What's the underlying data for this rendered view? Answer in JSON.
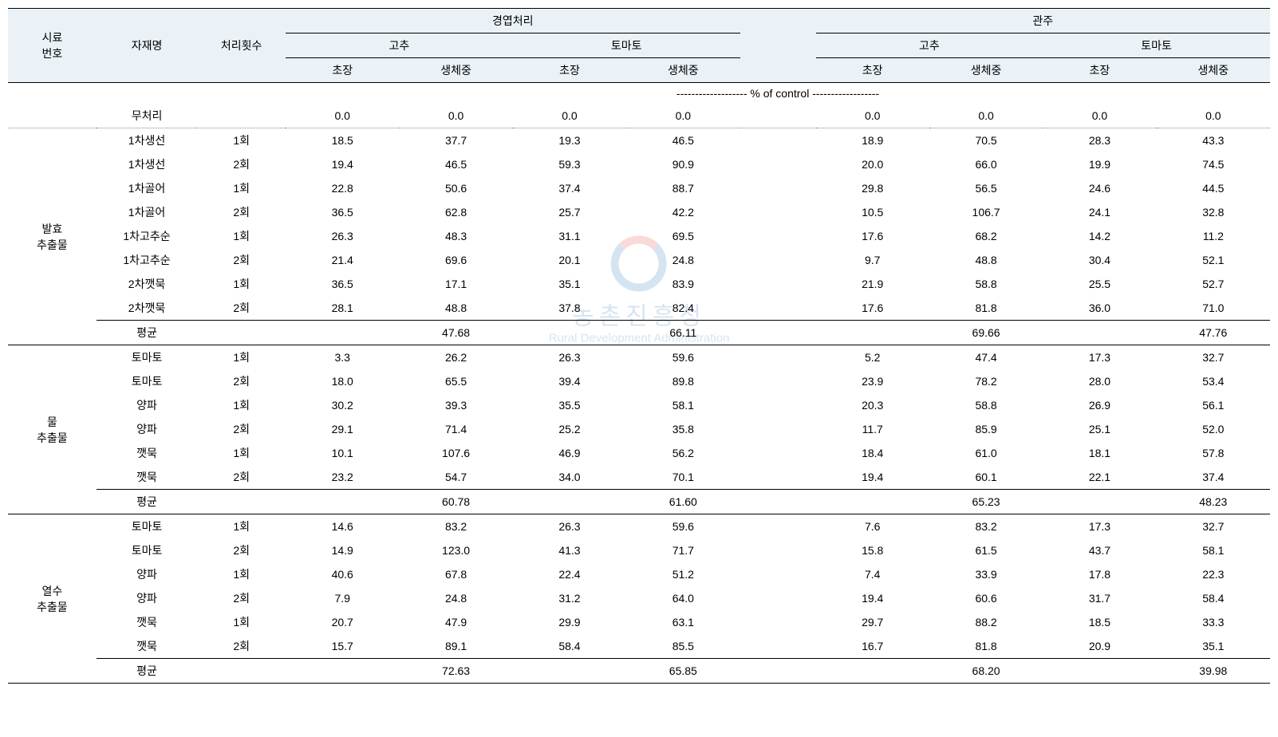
{
  "header": {
    "col_sample_no": "시료\n번호",
    "col_material": "자재명",
    "col_treatment_count": "처리횟수",
    "group_foliar": "경엽처리",
    "group_drench": "관주",
    "sub_pepper": "고추",
    "sub_tomato": "토마토",
    "leaf_height": "초장",
    "leaf_weight": "생체중",
    "pct_of_control": "------------------- % of control ------------------"
  },
  "labels": {
    "untreated": "무처리",
    "average": "평균",
    "group1": "발효\n추출물",
    "group2": "물\n추출물",
    "group3": "열수\n추출물"
  },
  "watermark": {
    "main": "농촌진흥청",
    "sub": "Rural Development Administration"
  },
  "untreated_row": [
    "0.0",
    "0.0",
    "0.0",
    "0.0",
    "0.0",
    "0.0",
    "0.0",
    "0.0"
  ],
  "group1": {
    "rows": [
      {
        "m": "1차생선",
        "t": "1회",
        "v": [
          "18.5",
          "37.7",
          "19.3",
          "46.5",
          "18.9",
          "70.5",
          "28.3",
          "43.3"
        ]
      },
      {
        "m": "1차생선",
        "t": "2회",
        "v": [
          "19.4",
          "46.5",
          "59.3",
          "90.9",
          "20.0",
          "66.0",
          "19.9",
          "74.5"
        ]
      },
      {
        "m": "1차골어",
        "t": "1회",
        "v": [
          "22.8",
          "50.6",
          "37.4",
          "88.7",
          "29.8",
          "56.5",
          "24.6",
          "44.5"
        ]
      },
      {
        "m": "1차골어",
        "t": "2회",
        "v": [
          "36.5",
          "62.8",
          "25.7",
          "42.2",
          "10.5",
          "106.7",
          "24.1",
          "32.8"
        ]
      },
      {
        "m": "1차고추순",
        "t": "1회",
        "v": [
          "26.3",
          "48.3",
          "31.1",
          "69.5",
          "17.6",
          "68.2",
          "14.2",
          "11.2"
        ]
      },
      {
        "m": "1차고추순",
        "t": "2회",
        "v": [
          "21.4",
          "69.6",
          "20.1",
          "24.8",
          "9.7",
          "48.8",
          "30.4",
          "52.1"
        ]
      },
      {
        "m": "2차깻묵",
        "t": "1회",
        "v": [
          "36.5",
          "17.1",
          "35.1",
          "83.9",
          "21.9",
          "58.8",
          "25.5",
          "52.7"
        ]
      },
      {
        "m": "2차깻묵",
        "t": "2회",
        "v": [
          "28.1",
          "48.8",
          "37.8",
          "82.4",
          "17.6",
          "81.8",
          "36.0",
          "71.0"
        ]
      }
    ],
    "avg": [
      "",
      "47.68",
      "",
      "66.11",
      "",
      "69.66",
      "",
      "47.76"
    ]
  },
  "group2": {
    "rows": [
      {
        "m": "토마토",
        "t": "1회",
        "v": [
          "3.3",
          "26.2",
          "26.3",
          "59.6",
          "5.2",
          "47.4",
          "17.3",
          "32.7"
        ]
      },
      {
        "m": "토마토",
        "t": "2회",
        "v": [
          "18.0",
          "65.5",
          "39.4",
          "89.8",
          "23.9",
          "78.2",
          "28.0",
          "53.4"
        ]
      },
      {
        "m": "양파",
        "t": "1회",
        "v": [
          "30.2",
          "39.3",
          "35.5",
          "58.1",
          "20.3",
          "58.8",
          "26.9",
          "56.1"
        ]
      },
      {
        "m": "양파",
        "t": "2회",
        "v": [
          "29.1",
          "71.4",
          "25.2",
          "35.8",
          "11.7",
          "85.9",
          "25.1",
          "52.0"
        ]
      },
      {
        "m": "깻묵",
        "t": "1회",
        "v": [
          "10.1",
          "107.6",
          "46.9",
          "56.2",
          "18.4",
          "61.0",
          "18.1",
          "57.8"
        ]
      },
      {
        "m": "깻묵",
        "t": "2회",
        "v": [
          "23.2",
          "54.7",
          "34.0",
          "70.1",
          "19.4",
          "60.1",
          "22.1",
          "37.4"
        ]
      }
    ],
    "avg": [
      "",
      "60.78",
      "",
      "61.60",
      "",
      "65.23",
      "",
      "48.23"
    ]
  },
  "group3": {
    "rows": [
      {
        "m": "토마토",
        "t": "1회",
        "v": [
          "14.6",
          "83.2",
          "26.3",
          "59.6",
          "7.6",
          "83.2",
          "17.3",
          "32.7"
        ]
      },
      {
        "m": "토마토",
        "t": "2회",
        "v": [
          "14.9",
          "123.0",
          "41.3",
          "71.7",
          "15.8",
          "61.5",
          "43.7",
          "58.1"
        ]
      },
      {
        "m": "양파",
        "t": "1회",
        "v": [
          "40.6",
          "67.8",
          "22.4",
          "51.2",
          "7.4",
          "33.9",
          "17.8",
          "22.3"
        ]
      },
      {
        "m": "양파",
        "t": "2회",
        "v": [
          "7.9",
          "24.8",
          "31.2",
          "64.0",
          "19.4",
          "60.6",
          "31.7",
          "58.4"
        ]
      },
      {
        "m": "깻묵",
        "t": "1회",
        "v": [
          "20.7",
          "47.9",
          "29.9",
          "63.1",
          "29.7",
          "88.2",
          "18.5",
          "33.3"
        ]
      },
      {
        "m": "깻묵",
        "t": "2회",
        "v": [
          "15.7",
          "89.1",
          "58.4",
          "85.5",
          "16.7",
          "81.8",
          "20.9",
          "35.1"
        ]
      }
    ],
    "avg": [
      "",
      "72.63",
      "",
      "65.85",
      "",
      "68.20",
      "",
      "39.98"
    ]
  }
}
